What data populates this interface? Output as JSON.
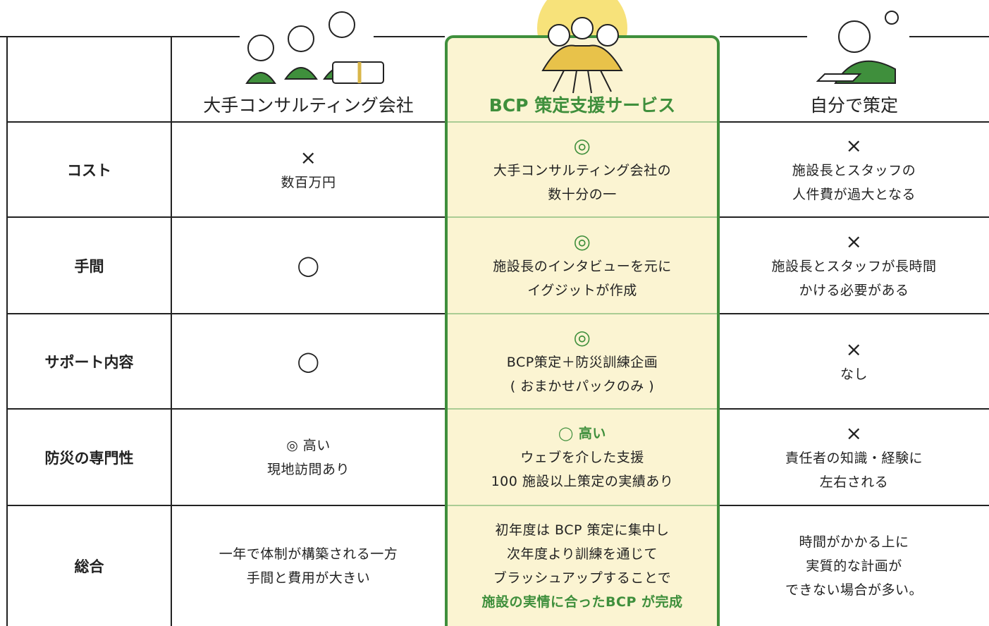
{
  "header": {
    "columns": [
      "大手コンサルティング会社",
      "BCP 策定支援サービス",
      "自分で策定"
    ]
  },
  "rows": [
    {
      "label": "コスト",
      "cells": [
        [
          "×",
          "数百万円"
        ],
        [
          "◎",
          "大手コンサルティング会社の",
          "数十分の一"
        ],
        [
          "×",
          "施設長とスタッフの",
          "人件費が過大となる"
        ]
      ]
    },
    {
      "label": "手間",
      "cells": [
        [
          "◯"
        ],
        [
          "◎",
          "施設長のインタビューを元に",
          "イグジットが作成"
        ],
        [
          "×",
          "施設長とスタッフが長時間",
          "かける必要がある"
        ]
      ]
    },
    {
      "label": "サポート内容",
      "cells": [
        [
          "◯"
        ],
        [
          "◎",
          "BCP策定＋防災訓練企画",
          "( おまかせパックのみ )"
        ],
        [
          "×",
          "なし"
        ]
      ]
    },
    {
      "label": "防災の専門性",
      "cells": [
        [
          "◎ 高い",
          "現地訪問あり"
        ],
        [
          "◯ 高い",
          "ウェブを介した支援",
          "100 施設以上策定の実績あり"
        ],
        [
          "×",
          "責任者の知識・経験に",
          "左右される"
        ]
      ]
    },
    {
      "label": "総合",
      "cells": [
        [
          "一年で体制が構築される一方",
          "手間と費用が大きい"
        ],
        [
          "初年度は BCP 策定に集中し",
          "次年度より訓練を通じて",
          "ブラッシュアップすることで",
          "施設の実情に合ったBCP が完成"
        ],
        [
          "時間がかかる上に",
          "実質的な計画が",
          "できない場合が多い。"
        ]
      ]
    }
  ]
}
